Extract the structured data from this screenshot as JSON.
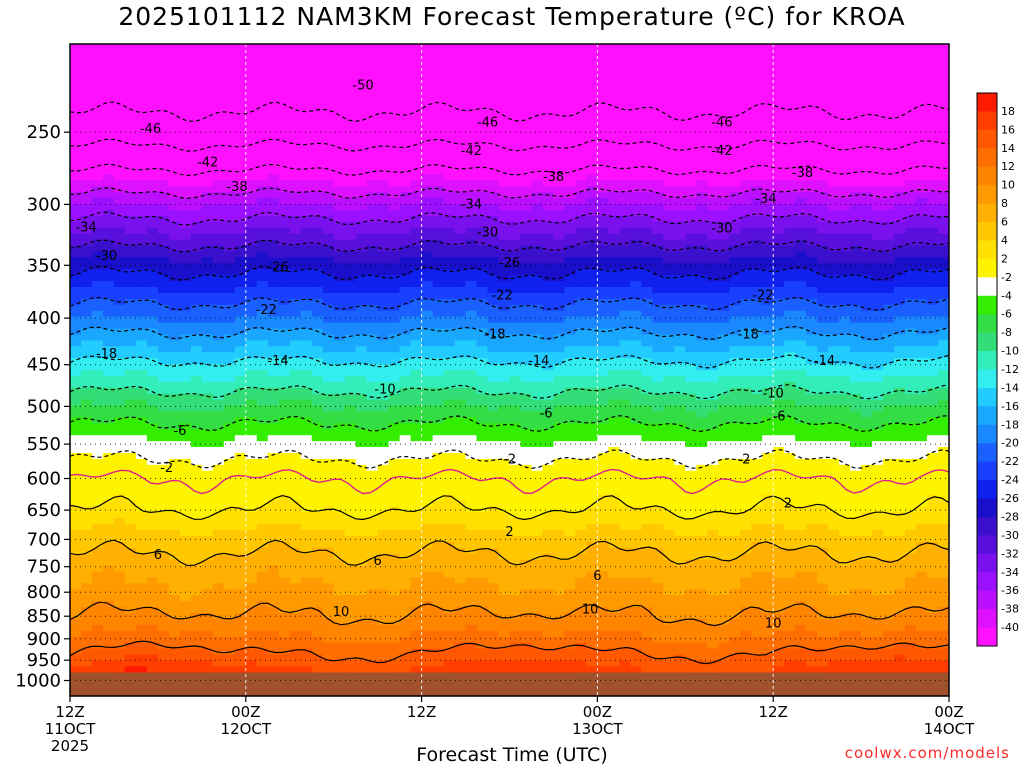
{
  "chart_data": {
    "type": "heatmap",
    "title": "2025101112 NAM3KM Forecast Temperature (ºC) for KROA",
    "xlabel": "Forecast Time (UTC)",
    "ylabel": "",
    "credit": "coolwx.com/models",
    "y_axis": {
      "scale": "pressure (inverted)",
      "ylim": [
        1040,
        200
      ],
      "tick_values": [
        250,
        300,
        350,
        400,
        450,
        500,
        550,
        600,
        650,
        700,
        750,
        800,
        850,
        900,
        950,
        1000
      ]
    },
    "x_axis": {
      "xlim_hours": [
        0,
        60
      ],
      "ticks": [
        {
          "h": 0,
          "lines": [
            "12Z",
            "11OCT",
            "2025"
          ]
        },
        {
          "h": 12,
          "lines": [
            "00Z",
            "12OCT"
          ]
        },
        {
          "h": 24,
          "lines": [
            "12Z"
          ]
        },
        {
          "h": 36,
          "lines": [
            "00Z",
            "13OCT"
          ]
        },
        {
          "h": 48,
          "lines": [
            "12Z"
          ]
        },
        {
          "h": 60,
          "lines": [
            "00Z",
            "14OCT"
          ]
        }
      ]
    },
    "colorbar": {
      "labels": [
        "18",
        "16",
        "14",
        "12",
        "10",
        "8",
        "6",
        "4",
        "2",
        "-2",
        "-4",
        "-6",
        "-8",
        "-10",
        "-12",
        "-14",
        "-16",
        "-18",
        "-20",
        "-22",
        "-24",
        "-26",
        "-28",
        "-30",
        "-32",
        "-34",
        "-36",
        "-38",
        "-40"
      ],
      "colors": [
        "#ff1a00",
        "#ff3e00",
        "#ff5800",
        "#ff6e00",
        "#ff8400",
        "#ff9a00",
        "#ffb000",
        "#ffc800",
        "#ffe000",
        "#fff400",
        "#ffffff",
        "#33ee00",
        "#33dd44",
        "#33dd77",
        "#33eebb",
        "#33eeee",
        "#22ccff",
        "#1aa8ff",
        "#1a88ff",
        "#1a60ff",
        "#1a40ff",
        "#1020ee",
        "#1a10cc",
        "#3b10cc",
        "#5a10dd",
        "#7a10ee",
        "#9a10ff",
        "#bb10ff",
        "#dd10ff",
        "#ff10ff"
      ]
    },
    "ground_color": "#a0522d",
    "contour_labels": [
      {
        "text": "-50",
        "h": 20.0,
        "p": 222
      },
      {
        "text": "-46",
        "h": 5.5,
        "p": 248
      },
      {
        "text": "-46",
        "h": 28.5,
        "p": 244
      },
      {
        "text": "-46",
        "h": 44.5,
        "p": 244
      },
      {
        "text": "-42",
        "h": 9.4,
        "p": 270
      },
      {
        "text": "-42",
        "h": 27.4,
        "p": 262
      },
      {
        "text": "-42",
        "h": 44.5,
        "p": 262
      },
      {
        "text": "-38",
        "h": 11.4,
        "p": 287
      },
      {
        "text": "-38",
        "h": 33.0,
        "p": 280
      },
      {
        "text": "-38",
        "h": 50.0,
        "p": 277
      },
      {
        "text": "-34",
        "h": 1.1,
        "p": 318
      },
      {
        "text": "-34",
        "h": 27.4,
        "p": 300
      },
      {
        "text": "-34",
        "h": 47.5,
        "p": 296
      },
      {
        "text": "-30",
        "h": 2.5,
        "p": 342
      },
      {
        "text": "-30",
        "h": 28.5,
        "p": 322
      },
      {
        "text": "-30",
        "h": 44.5,
        "p": 319
      },
      {
        "text": "-26",
        "h": 14.2,
        "p": 352
      },
      {
        "text": "-26",
        "h": 30.0,
        "p": 348
      },
      {
        "text": "-22",
        "h": 13.4,
        "p": 392
      },
      {
        "text": "-22",
        "h": 29.5,
        "p": 378
      },
      {
        "text": "-22",
        "h": 47.3,
        "p": 378
      },
      {
        "text": "-18",
        "h": 2.5,
        "p": 438
      },
      {
        "text": "-18",
        "h": 29.0,
        "p": 417
      },
      {
        "text": "-18",
        "h": 46.3,
        "p": 417
      },
      {
        "text": "-14",
        "h": 14.2,
        "p": 446
      },
      {
        "text": "-14",
        "h": 32.0,
        "p": 446
      },
      {
        "text": "-14",
        "h": 51.5,
        "p": 446
      },
      {
        "text": "-10",
        "h": 21.5,
        "p": 479
      },
      {
        "text": "-10",
        "h": 48.0,
        "p": 484
      },
      {
        "text": "-6",
        "h": 7.5,
        "p": 532
      },
      {
        "text": "-6",
        "h": 32.5,
        "p": 509
      },
      {
        "text": "-6",
        "h": 48.4,
        "p": 513
      },
      {
        "text": "-2",
        "h": 6.6,
        "p": 584
      },
      {
        "text": "-2",
        "h": 30.0,
        "p": 572
      },
      {
        "text": "-2",
        "h": 46.0,
        "p": 572
      },
      {
        "text": "2",
        "h": 30.0,
        "p": 687
      },
      {
        "text": "2",
        "h": 49.0,
        "p": 639
      },
      {
        "text": "6",
        "h": 6.0,
        "p": 728
      },
      {
        "text": "6",
        "h": 21.0,
        "p": 739
      },
      {
        "text": "6",
        "h": 36.0,
        "p": 768
      },
      {
        "text": "10",
        "h": 18.5,
        "p": 841
      },
      {
        "text": "10",
        "h": 35.5,
        "p": 836
      },
      {
        "text": "10",
        "h": 48.0,
        "p": 866
      }
    ]
  }
}
